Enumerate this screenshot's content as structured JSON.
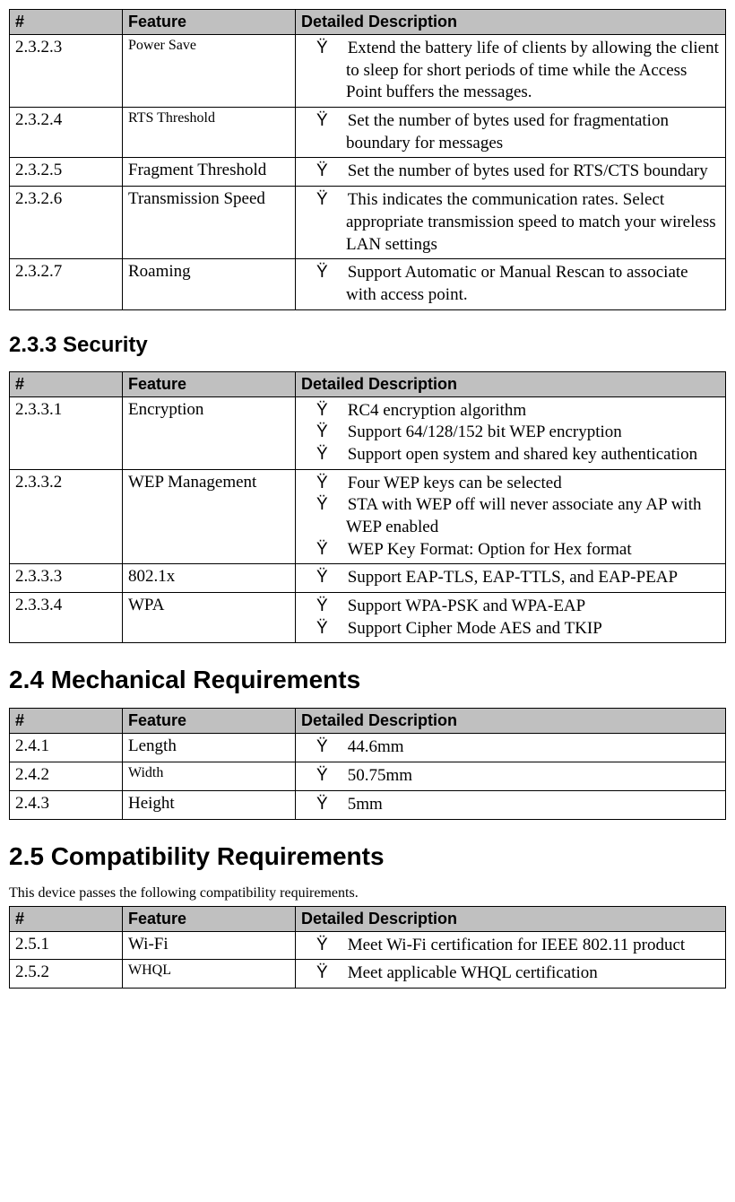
{
  "table1": {
    "headers": [
      "#",
      "Feature",
      "Detailed Description"
    ],
    "rows": [
      {
        "num": "2.3.2.3",
        "feature": "Power Save",
        "feature_small": true,
        "items": [
          "Extend the battery life of clients by allowing the client to sleep for short periods of time while the Access Point buffers the messages."
        ]
      },
      {
        "num": "2.3.2.4",
        "feature": "RTS Threshold",
        "feature_small": true,
        "items": [
          "Set the number of bytes used for fragmentation boundary for messages"
        ]
      },
      {
        "num": "2.3.2.5",
        "feature": "Fragment Threshold",
        "feature_small": false,
        "items": [
          "Set the number of bytes used for RTS/CTS boundary"
        ]
      },
      {
        "num": "2.3.2.6",
        "feature": "Transmission Speed",
        "feature_small": false,
        "items": [
          "This indicates the communication rates. Select appropriate transmission speed to match your wireless LAN settings"
        ]
      },
      {
        "num": "2.3.2.7",
        "feature": "Roaming",
        "feature_small": false,
        "items": [
          "Support Automatic or Manual Rescan to associate with access point."
        ]
      }
    ]
  },
  "section233": {
    "title": "2.3.3 Security",
    "headers": [
      "#",
      "Feature",
      "Detailed Description"
    ],
    "rows": [
      {
        "num": "2.3.3.1",
        "feature": "Encryption",
        "feature_small": false,
        "items": [
          "RC4 encryption algorithm",
          "Support 64/128/152 bit WEP encryption",
          "Support open system and shared key authentication"
        ]
      },
      {
        "num": "2.3.3.2",
        "feature": "WEP Management",
        "feature_small": false,
        "items": [
          "Four WEP keys can be selected",
          "STA with WEP off will never associate any AP with WEP enabled",
          "WEP Key Format: Option for Hex format"
        ]
      },
      {
        "num": "2.3.3.3",
        "feature": "802.1x",
        "feature_small": false,
        "items": [
          "Support EAP-TLS, EAP-TTLS, and EAP-PEAP"
        ]
      },
      {
        "num": "2.3.3.4",
        "feature": "WPA",
        "feature_small": false,
        "items": [
          "Support WPA-PSK and WPA-EAP",
          "Support Cipher Mode AES and TKIP"
        ]
      }
    ]
  },
  "section24": {
    "title": "2.4 Mechanical Requirements",
    "headers": [
      "#",
      "Feature",
      "Detailed Description"
    ],
    "rows": [
      {
        "num": "2.4.1",
        "feature": "Length",
        "feature_small": false,
        "items": [
          "44.6mm"
        ]
      },
      {
        "num": "2.4.2",
        "feature": "Width",
        "feature_small": true,
        "items": [
          "50.75mm"
        ]
      },
      {
        "num": "2.4.3",
        "feature": "Height",
        "feature_small": false,
        "items": [
          "5mm"
        ]
      }
    ]
  },
  "section25": {
    "title": "2.5 Compatibility Requirements",
    "intro": "This device passes the following compatibility requirements.",
    "headers": [
      "#",
      "Feature",
      "Detailed Description"
    ],
    "rows": [
      {
        "num": "2.5.1",
        "feature": "Wi-Fi",
        "feature_small": false,
        "items": [
          "Meet Wi-Fi certification for IEEE 802.11 product"
        ]
      },
      {
        "num": "2.5.2",
        "feature": "WHQL",
        "feature_small": true,
        "items": [
          "Meet applicable WHQL certification"
        ]
      }
    ]
  }
}
